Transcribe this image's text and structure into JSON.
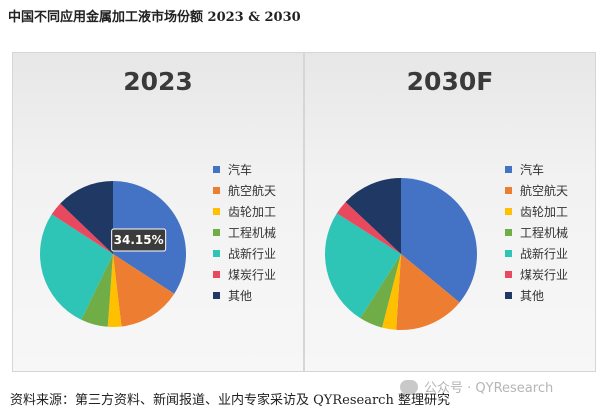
{
  "page": {
    "title": "中国不同应用金属加工液市场份额 2023 & 2030",
    "footer": "资料来源：第三方资料、新闻报道、业内专家采访及 QYResearch 整理研究",
    "watermark": "公众号 · QYResearch"
  },
  "chart_data": [
    {
      "type": "pie",
      "title": "2023",
      "labels": [
        "汽车",
        "航空航天",
        "齿轮加工",
        "工程机械",
        "战新行业",
        "煤炭行业",
        "其他"
      ],
      "values": [
        34.15,
        14.0,
        3.0,
        6.0,
        27.0,
        3.0,
        12.85
      ],
      "colors": [
        "#4472c4",
        "#ed7d31",
        "#ffc000",
        "#70ad47",
        "#2ec4b6",
        "#e8495e",
        "#203864"
      ],
      "data_labels": [
        {
          "index": 0,
          "text": "34.15%"
        }
      ]
    },
    {
      "type": "pie",
      "title": "2030F",
      "labels": [
        "汽车",
        "航空航天",
        "齿轮加工",
        "工程机械",
        "战新行业",
        "煤炭行业",
        "其他"
      ],
      "values": [
        36.0,
        15.0,
        3.0,
        5.0,
        25.0,
        3.0,
        13.0
      ],
      "colors": [
        "#4472c4",
        "#ed7d31",
        "#ffc000",
        "#70ad47",
        "#2ec4b6",
        "#e8495e",
        "#203864"
      ]
    }
  ]
}
